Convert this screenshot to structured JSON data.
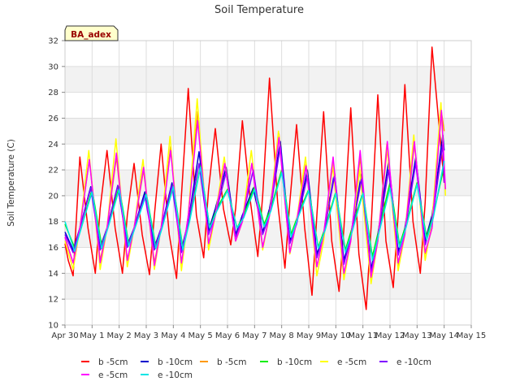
{
  "chart_data": {
    "type": "line",
    "title": "Soil Temperature",
    "ylabel": "Soil Temperature (C)",
    "xlabel": "",
    "ylim": [
      10,
      32
    ],
    "xlim": [
      0,
      15
    ],
    "yticks": [
      10,
      12,
      14,
      16,
      18,
      20,
      22,
      24,
      26,
      28,
      30,
      32
    ],
    "xticks": [
      {
        "x": 0,
        "label": "Apr 30"
      },
      {
        "x": 1,
        "label": "May 1"
      },
      {
        "x": 2,
        "label": "May 2"
      },
      {
        "x": 3,
        "label": "May 3"
      },
      {
        "x": 4,
        "label": "May 4"
      },
      {
        "x": 5,
        "label": "May 5"
      },
      {
        "x": 6,
        "label": "May 6"
      },
      {
        "x": 7,
        "label": "May 7"
      },
      {
        "x": 8,
        "label": "May 8"
      },
      {
        "x": 9,
        "label": "May 9"
      },
      {
        "x": 10,
        "label": "May 10"
      },
      {
        "x": 11,
        "label": "May 11"
      },
      {
        "x": 12,
        "label": "May 12"
      },
      {
        "x": 13,
        "label": "May 13"
      },
      {
        "x": 14,
        "label": "May 14"
      },
      {
        "x": 15,
        "label": "May 15"
      }
    ],
    "grid": true,
    "background_bands": true,
    "station_label": "BA_adex",
    "legend_position": "bottom",
    "series": [
      {
        "name": "b -5cm",
        "color": "#ff0000",
        "x": [
          0.0,
          0.12,
          0.3,
          0.55,
          0.85,
          1.12,
          1.3,
          1.55,
          1.85,
          2.12,
          2.3,
          2.55,
          2.85,
          3.12,
          3.3,
          3.55,
          3.85,
          4.12,
          4.3,
          4.55,
          4.85,
          5.12,
          5.3,
          5.55,
          5.85,
          6.12,
          6.3,
          6.55,
          6.85,
          7.12,
          7.3,
          7.55,
          7.85,
          8.12,
          8.3,
          8.55,
          8.85,
          9.12,
          9.3,
          9.55,
          9.85,
          10.12,
          10.3,
          10.55,
          10.85,
          11.12,
          11.3,
          11.55,
          11.85,
          12.12,
          12.3,
          12.55,
          12.85,
          13.12,
          13.3,
          13.55,
          13.85,
          14.0
        ],
        "y": [
          16.3,
          15.0,
          13.8,
          23.0,
          17.5,
          14.0,
          19.0,
          23.5,
          17.5,
          14.0,
          18.5,
          22.5,
          17.0,
          13.9,
          18.5,
          24.0,
          17.0,
          13.6,
          20.0,
          28.3,
          18.5,
          15.2,
          20.5,
          25.2,
          19.0,
          16.2,
          19.0,
          25.8,
          19.5,
          15.3,
          20.0,
          29.1,
          19.5,
          14.4,
          19.5,
          25.5,
          17.5,
          12.3,
          18.5,
          26.5,
          16.5,
          12.6,
          17.5,
          26.8,
          15.5,
          11.2,
          17.5,
          27.8,
          16.5,
          12.9,
          18.5,
          28.6,
          18.0,
          14.0,
          19.5,
          31.5,
          24.5,
          21.0
        ]
      },
      {
        "name": "b -10cm",
        "color": "#0000cc",
        "x": [
          0.0,
          0.3,
          0.55,
          0.95,
          1.3,
          1.55,
          1.95,
          2.3,
          2.55,
          2.95,
          3.3,
          3.55,
          3.95,
          4.3,
          4.55,
          4.95,
          5.3,
          5.55,
          5.95,
          6.3,
          6.55,
          6.95,
          7.3,
          7.55,
          7.95,
          8.3,
          8.55,
          8.95,
          9.3,
          9.55,
          9.95,
          10.3,
          10.55,
          10.95,
          11.3,
          11.55,
          11.95,
          12.3,
          12.55,
          12.95,
          13.3,
          13.55,
          13.95,
          14.0
        ],
        "y": [
          17.2,
          15.8,
          17.5,
          20.7,
          16.0,
          17.5,
          20.8,
          16.2,
          17.5,
          20.3,
          16.0,
          17.5,
          21.0,
          15.8,
          18.0,
          23.4,
          17.3,
          19.0,
          22.2,
          17.0,
          18.5,
          20.6,
          17.2,
          19.0,
          24.2,
          16.5,
          18.0,
          22.0,
          15.5,
          17.0,
          21.8,
          15.0,
          17.0,
          21.7,
          14.3,
          17.0,
          22.7,
          15.7,
          17.5,
          23.0,
          16.5,
          18.5,
          24.7,
          23.5
        ]
      },
      {
        "name": "b -5cm",
        "color": "#ff9900",
        "x": [
          0.0,
          0.3,
          0.55,
          0.9,
          1.3,
          1.55,
          1.9,
          2.3,
          2.55,
          2.9,
          3.3,
          3.55,
          3.9,
          4.3,
          4.55,
          4.9,
          5.3,
          5.55,
          5.9,
          6.3,
          6.55,
          6.9,
          7.3,
          7.55,
          7.9,
          8.3,
          8.55,
          8.9,
          9.3,
          9.55,
          9.9,
          10.3,
          10.55,
          10.9,
          11.3,
          11.55,
          11.9,
          12.3,
          12.55,
          12.9,
          13.3,
          13.55,
          13.9,
          14.0
        ],
        "y": [
          16.8,
          14.8,
          17.5,
          22.8,
          15.0,
          17.5,
          23.0,
          15.0,
          17.5,
          22.0,
          14.8,
          17.5,
          23.8,
          14.5,
          18.5,
          26.5,
          16.0,
          18.5,
          22.5,
          16.5,
          18.0,
          22.5,
          16.0,
          18.5,
          24.8,
          15.5,
          18.0,
          22.5,
          14.5,
          17.0,
          22.5,
          13.8,
          16.5,
          23.0,
          13.5,
          16.5,
          23.8,
          14.5,
          17.0,
          24.0,
          15.5,
          17.5,
          26.5,
          25.0
        ]
      },
      {
        "name": "b -10cm",
        "color": "#00ee00",
        "x": [
          0.0,
          0.35,
          0.6,
          1.0,
          1.35,
          1.6,
          2.0,
          2.35,
          2.6,
          3.0,
          3.35,
          3.6,
          4.0,
          4.35,
          4.6,
          5.0,
          5.35,
          5.6,
          6.0,
          6.35,
          6.6,
          7.0,
          7.35,
          7.6,
          8.0,
          8.35,
          8.6,
          9.0,
          9.35,
          9.6,
          10.0,
          10.35,
          10.6,
          11.0,
          11.35,
          11.6,
          12.0,
          12.35,
          12.6,
          13.0,
          13.35,
          13.6,
          14.0
        ],
        "y": [
          17.8,
          16.0,
          17.5,
          20.5,
          16.2,
          17.8,
          20.7,
          16.3,
          17.8,
          20.2,
          16.1,
          17.8,
          20.8,
          16.0,
          18.2,
          22.3,
          17.5,
          19.0,
          20.5,
          17.5,
          18.5,
          20.7,
          17.8,
          19.0,
          22.0,
          17.0,
          18.5,
          20.5,
          16.0,
          17.5,
          20.3,
          15.8,
          17.5,
          20.3,
          15.3,
          17.5,
          21.0,
          16.2,
          17.8,
          21.0,
          16.8,
          18.5,
          22.3
        ]
      },
      {
        "name": "e -5cm",
        "color": "#ffff00",
        "x": [
          0.0,
          0.3,
          0.55,
          0.88,
          1.3,
          1.55,
          1.88,
          2.3,
          2.55,
          2.88,
          3.3,
          3.55,
          3.88,
          4.3,
          4.55,
          4.88,
          5.3,
          5.55,
          5.88,
          6.3,
          6.55,
          6.88,
          7.3,
          7.55,
          7.88,
          8.3,
          8.55,
          8.88,
          9.3,
          9.55,
          9.88,
          10.3,
          10.55,
          10.88,
          11.3,
          11.55,
          11.88,
          12.3,
          12.55,
          12.88,
          13.3,
          13.55,
          13.88,
          14.05
        ],
        "y": [
          16.5,
          14.3,
          17.5,
          23.5,
          14.3,
          17.5,
          24.4,
          14.5,
          17.5,
          22.8,
          14.3,
          17.5,
          24.6,
          14.2,
          18.5,
          27.5,
          15.8,
          18.5,
          23.0,
          16.5,
          18.0,
          23.5,
          15.8,
          18.5,
          25.0,
          15.5,
          18.0,
          23.0,
          13.8,
          16.5,
          22.5,
          13.5,
          16.5,
          22.0,
          13.2,
          16.5,
          24.0,
          14.2,
          17.0,
          24.7,
          15.0,
          18.0,
          27.2,
          20.0
        ]
      },
      {
        "name": "e -10cm",
        "color": "#8000ff",
        "x": [
          0.0,
          0.3,
          0.55,
          0.95,
          1.3,
          1.55,
          1.95,
          2.3,
          2.55,
          2.95,
          3.3,
          3.55,
          3.95,
          4.3,
          4.55,
          4.95,
          5.3,
          5.55,
          5.95,
          6.3,
          6.55,
          6.95,
          7.3,
          7.55,
          7.95,
          8.3,
          8.55,
          8.95,
          9.3,
          9.55,
          9.95,
          10.3,
          10.55,
          10.95,
          11.3,
          11.55,
          11.95,
          12.3,
          12.55,
          12.95,
          13.3,
          13.55,
          13.95,
          14.0
        ],
        "y": [
          17.0,
          15.6,
          17.5,
          20.6,
          15.8,
          17.5,
          20.8,
          16.0,
          17.5,
          20.0,
          15.8,
          17.5,
          20.8,
          15.6,
          18.0,
          22.5,
          17.0,
          18.5,
          21.8,
          16.8,
          18.3,
          22.0,
          17.0,
          18.5,
          23.8,
          16.3,
          17.8,
          21.5,
          15.2,
          17.0,
          21.5,
          14.7,
          16.8,
          21.3,
          14.0,
          16.8,
          22.0,
          15.4,
          17.3,
          22.5,
          16.2,
          18.0,
          24.0,
          21.0
        ]
      },
      {
        "name": "e -5cm",
        "color": "#ff00ff",
        "x": [
          0.0,
          0.3,
          0.55,
          0.9,
          1.3,
          1.55,
          1.9,
          2.3,
          2.55,
          2.9,
          3.3,
          3.55,
          3.9,
          4.3,
          4.55,
          4.9,
          5.3,
          5.55,
          5.9,
          6.3,
          6.55,
          6.9,
          7.3,
          7.55,
          7.9,
          8.3,
          8.55,
          8.9,
          9.3,
          9.55,
          9.9,
          10.3,
          10.55,
          10.9,
          11.3,
          11.55,
          11.9,
          12.3,
          12.55,
          12.9,
          13.3,
          13.55,
          13.9,
          14.05
        ],
        "y": [
          16.8,
          14.8,
          17.5,
          22.8,
          14.8,
          17.5,
          23.3,
          15.0,
          17.5,
          22.2,
          14.6,
          17.5,
          23.5,
          14.8,
          18.5,
          25.8,
          16.3,
          18.5,
          22.5,
          16.5,
          18.0,
          22.5,
          16.0,
          18.5,
          24.5,
          15.6,
          18.0,
          22.3,
          14.5,
          17.0,
          23.0,
          14.0,
          16.5,
          23.5,
          13.7,
          16.5,
          24.2,
          14.8,
          17.0,
          24.2,
          15.6,
          17.5,
          26.6,
          20.5
        ]
      },
      {
        "name": "e -10cm",
        "color": "#00e5e5",
        "x": [
          0.0,
          0.35,
          0.6,
          1.0,
          1.35,
          1.6,
          2.0,
          2.35,
          2.6,
          3.0,
          3.35,
          3.6,
          4.0,
          4.35,
          4.6,
          5.0,
          5.35,
          5.6,
          6.0,
          6.35,
          6.6,
          7.0,
          7.35,
          7.6,
          8.0,
          8.35,
          8.6,
          9.0,
          9.35,
          9.6,
          10.0,
          10.35,
          10.6,
          11.0,
          11.35,
          11.6,
          12.0,
          12.35,
          12.6,
          13.0,
          13.35,
          13.6,
          14.0
        ],
        "y": [
          18.0,
          15.7,
          17.5,
          20.3,
          15.9,
          17.6,
          20.5,
          16.1,
          17.6,
          20.1,
          15.9,
          17.6,
          20.7,
          15.8,
          18.0,
          22.2,
          17.5,
          18.8,
          20.4,
          17.5,
          18.3,
          20.5,
          17.6,
          18.8,
          21.8,
          16.8,
          18.3,
          20.4,
          15.9,
          17.3,
          20.2,
          15.6,
          17.2,
          20.2,
          15.0,
          17.2,
          20.6,
          16.0,
          17.6,
          20.9,
          16.6,
          18.3,
          22.7
        ]
      }
    ]
  }
}
